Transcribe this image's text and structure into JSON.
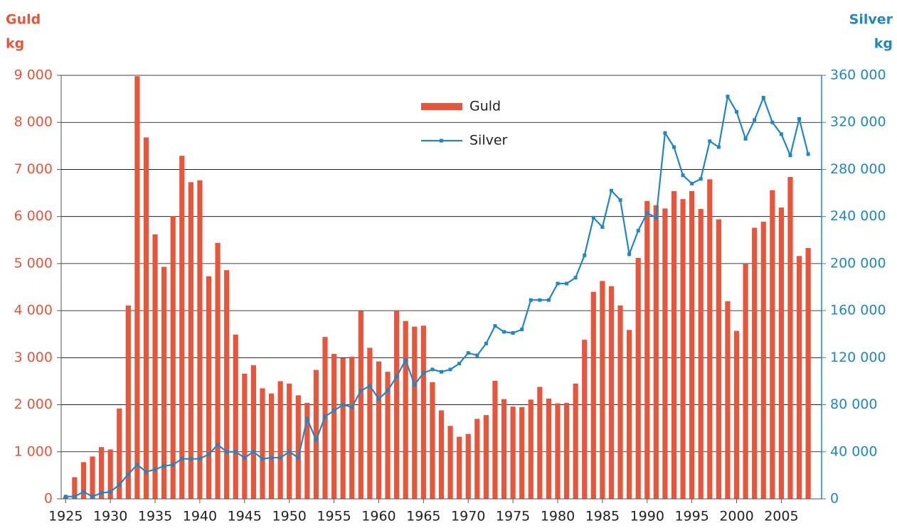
{
  "chart_data": {
    "type": "bar",
    "ylabel": "Guld",
    "yunit": "kg",
    "y2label": "Silver",
    "y2unit": "kg",
    "x": [
      1925,
      1926,
      1927,
      1928,
      1929,
      1930,
      1931,
      1932,
      1933,
      1934,
      1935,
      1936,
      1937,
      1938,
      1939,
      1940,
      1941,
      1942,
      1943,
      1944,
      1945,
      1946,
      1947,
      1948,
      1949,
      1950,
      1951,
      1952,
      1953,
      1954,
      1955,
      1956,
      1957,
      1958,
      1959,
      1960,
      1961,
      1962,
      1963,
      1964,
      1965,
      1966,
      1967,
      1968,
      1969,
      1970,
      1971,
      1972,
      1973,
      1974,
      1975,
      1976,
      1977,
      1978,
      1979,
      1980,
      1981,
      1982,
      1983,
      1984,
      1985,
      1986,
      1987,
      1988,
      1989,
      1990,
      1991,
      1992,
      1993,
      1994,
      1995,
      1996,
      1997,
      1998,
      1999,
      2000,
      2001,
      2002,
      2003,
      2004,
      2005,
      2006,
      2007,
      2008
    ],
    "series": [
      {
        "name": "Guld",
        "type": "bar",
        "color": "#e8553a",
        "axis": "y",
        "values": [
          50,
          460,
          780,
          900,
          1100,
          1050,
          1920,
          4110,
          8980,
          7680,
          5620,
          4930,
          6010,
          7290,
          6730,
          6770,
          4730,
          5440,
          4860,
          3490,
          2660,
          2840,
          2350,
          2240,
          2500,
          2450,
          2200,
          2040,
          2740,
          3440,
          3080,
          2990,
          3020,
          3990,
          3210,
          2920,
          2700,
          4000,
          3780,
          3660,
          3680,
          2480,
          1880,
          1550,
          1320,
          1380,
          1700,
          1780,
          2510,
          2120,
          1960,
          1950,
          2110,
          2380,
          2130,
          2030,
          2040,
          2450,
          3380,
          4400,
          4630,
          4520,
          4110,
          3590,
          5120,
          6330,
          6240,
          6170,
          6540,
          6370,
          6540,
          6160,
          6790,
          5940,
          4200,
          3570,
          5000,
          5760,
          5890,
          6560,
          6190,
          6840,
          5160,
          5330
        ]
      },
      {
        "name": "Silver",
        "type": "line",
        "color": "#1f87c3",
        "axis": "y2",
        "values": [
          2000,
          2000,
          6000,
          2000,
          5000,
          6000,
          12000,
          21000,
          29000,
          23000,
          25000,
          28000,
          29000,
          34000,
          34000,
          34000,
          38000,
          46000,
          40000,
          40000,
          35000,
          40000,
          34000,
          35000,
          35000,
          40000,
          35000,
          68000,
          50000,
          70000,
          75000,
          80000,
          78000,
          92000,
          96000,
          85000,
          92000,
          104000,
          118000,
          97000,
          107000,
          110000,
          108000,
          110000,
          115000,
          124000,
          122000,
          132000,
          147000,
          142000,
          141000,
          144000,
          169000,
          169000,
          169000,
          183000,
          183000,
          188000,
          207000,
          239000,
          231000,
          262000,
          254000,
          208000,
          228000,
          243000,
          239000,
          311000,
          299000,
          275000,
          268000,
          272000,
          304000,
          299000,
          342000,
          329000,
          306000,
          322000,
          341000,
          320000,
          310000,
          292000,
          323000,
          293000
        ]
      }
    ],
    "xlim": [
      1924.5,
      2009.5
    ],
    "xticks": [
      1925,
      1930,
      1935,
      1940,
      1945,
      1950,
      1955,
      1960,
      1965,
      1970,
      1975,
      1980,
      1985,
      1990,
      1995,
      2000,
      2005
    ],
    "ylim": [
      0,
      9000
    ],
    "yticks": [
      0,
      {
        "value": 1000,
        "label": "1 000"
      },
      {
        "value": 2000,
        "label": "2 000"
      },
      {
        "value": 3000,
        "label": "3 000"
      },
      {
        "value": 4000,
        "label": "4 000"
      },
      {
        "value": 5000,
        "label": "5 000"
      },
      {
        "value": 6000,
        "label": "6 000"
      },
      {
        "value": 7000,
        "label": "7 000"
      },
      {
        "value": 8000,
        "label": "8 000"
      },
      {
        "value": 9000,
        "label": "9 000"
      }
    ],
    "y2lim": [
      0,
      360000
    ],
    "y2ticks": [
      0,
      {
        "value": 40000,
        "label": "40 000"
      },
      {
        "value": 80000,
        "label": "80 000"
      },
      {
        "value": 120000,
        "label": "120 000"
      },
      {
        "value": 160000,
        "label": "160 000"
      },
      {
        "value": 200000,
        "label": "200 000"
      },
      {
        "value": 240000,
        "label": "240 000"
      },
      {
        "value": 280000,
        "label": "280 000"
      },
      {
        "value": 320000,
        "label": "320 000"
      },
      {
        "value": 360000,
        "label": "360 000"
      }
    ],
    "grid": true
  }
}
